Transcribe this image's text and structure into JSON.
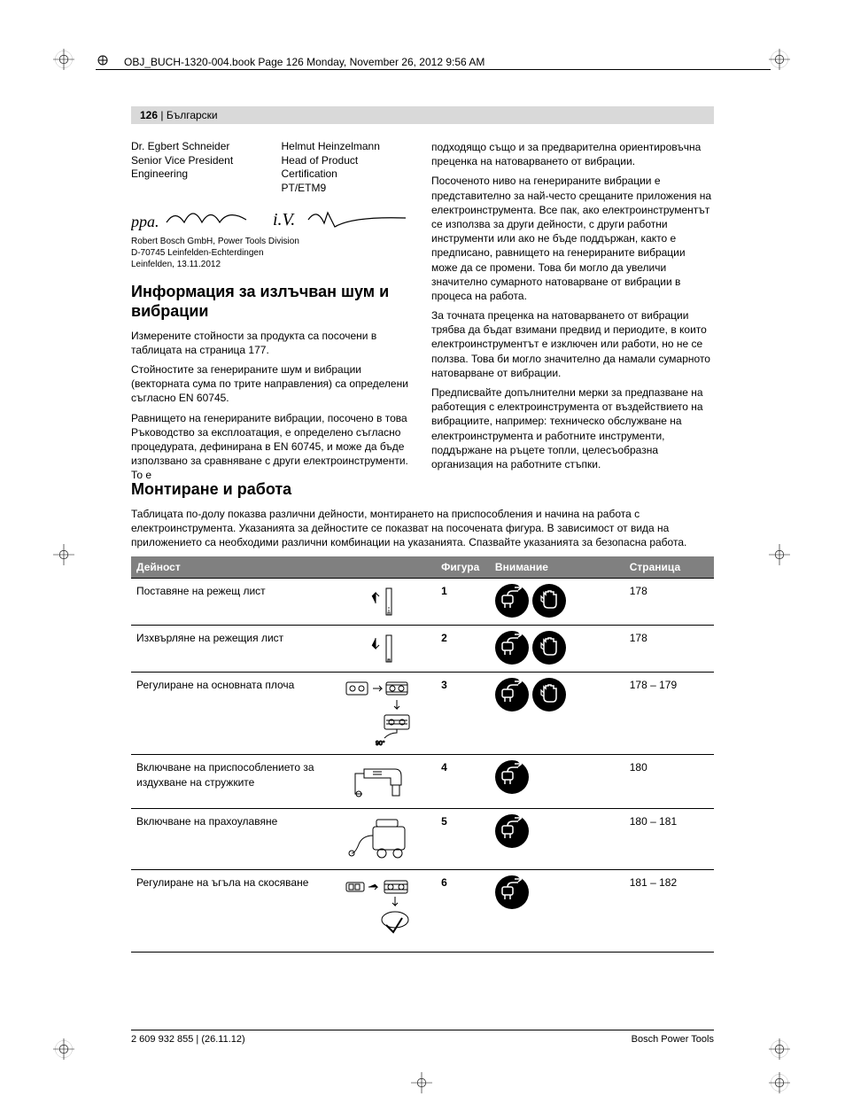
{
  "doc_header": "OBJ_BUCH-1320-004.book  Page 126  Monday, November 26, 2012  9:56 AM",
  "page_number": "126",
  "page_lang": "Български",
  "signatories": {
    "left": {
      "name": "Dr. Egbert Schneider",
      "title1": "Senior Vice President",
      "title2": "Engineering"
    },
    "right": {
      "name": "Helmut Heinzelmann",
      "title1": "Head of Product Certification",
      "title2": "PT/ETM9"
    },
    "company_line1": "Robert Bosch GmbH, Power Tools Division",
    "company_line2": "D-70745 Leinfelden-Echterdingen",
    "company_line3": "Leinfelden, 13.11.2012"
  },
  "section1": {
    "title": "Информация за излъчван шум и вибрации",
    "p1": "Измерените стойности за продукта са посочени в таблицата на страница 177.",
    "p2": "Стойностите за генерираните шум и вибрации (векторната сума по трите направления) са определени съгласно EN 60745.",
    "p3": "Равнището на генерираните вибрации, посочено в това Ръководство за експлоатация, е определено съгласно процедурата, дефинирана в EN 60745, и може да бъде използвано за сравняване с други електроинструменти. То е"
  },
  "right_col": {
    "p1": "подходящо също и за предварителна ориентировъчна преценка на натоварването от вибрации.",
    "p2": "Посоченото ниво на генерираните вибрации е представително за най-често срещаните приложения на електроинструмента. Все пак, ако електроинструментът се използва за други дейности, с други работни инструменти или ако не бъде поддържан, както е предписано, равнището на генерираните вибрации може да се промени. Това би могло да увеличи значително сумарното натоварване от вибрации в процеса на работа.",
    "p3": "За точната преценка на натоварването от вибрации трябва да бъдат взимани предвид и периодите, в които електроинструментът е изключен или работи, но не се ползва. Това би могло значително да намали сумарното натоварване от вибрации.",
    "p4": "Предписвайте допълнителни мерки за предпазване на работещия с електроинструмента от въздействието на вибрациите, например: техническо обслужване на електроинструмента и работните инструменти, поддържане на ръцете топли, целесъобразна организация на работните стъпки."
  },
  "section2": {
    "title": "Монтиране и работа",
    "intro": "Таблицата по-долу показва различни дейности, монтирането на приспособления и начина на работа с електроинструмента. Указанията за дейностите се показват на посочената фигура. В зависимост от вида на приложението са необходими различни комбинации на указанията. Спазвайте указанията за безопасна работа."
  },
  "table": {
    "headers": {
      "activity": "Дейност",
      "figure": "Фигура",
      "attention": "Внимание",
      "page": "Страница"
    },
    "rows": [
      {
        "activity": "Поставяне на режещ лист",
        "figure": "1",
        "icons": 2,
        "page": "178"
      },
      {
        "activity": "Изхвърляне на режещия лист",
        "figure": "2",
        "icons": 2,
        "page": "178"
      },
      {
        "activity": "Регулиране на основната плоча",
        "figure": "3",
        "icons": 2,
        "page": "178 – 179"
      },
      {
        "activity": "Включване на приспособлението за издухване на стружките",
        "figure": "4",
        "icons": 1,
        "page": "180"
      },
      {
        "activity": "Включване на прахоулавяне",
        "figure": "5",
        "icons": 1,
        "page": "180 – 181"
      },
      {
        "activity": "Регулиране на ъгъла на скосяване",
        "figure": "6",
        "icons": 1,
        "page": "181 – 182"
      }
    ]
  },
  "footer": {
    "left": "2 609 932 855 | (26.11.12)",
    "right": "Bosch Power Tools"
  },
  "colors": {
    "header_gray": "#d9d9d9",
    "table_header": "#808080",
    "text": "#000000",
    "icon_bg": "#000000"
  }
}
